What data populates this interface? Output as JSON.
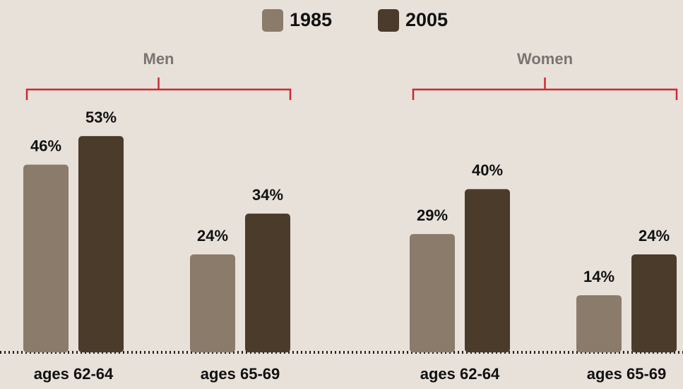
{
  "chart_data": {
    "type": "bar",
    "groups": [
      {
        "label": "Men",
        "categories": [
          "ages 62-64",
          "ages 65-69"
        ]
      },
      {
        "label": "Women",
        "categories": [
          "ages 62-64",
          "ages 65-69"
        ]
      }
    ],
    "series": [
      {
        "name": "1985",
        "color": "#8a7b6b",
        "values": [
          46,
          24,
          29,
          14
        ],
        "value_labels": [
          "46%",
          "24%",
          "29%",
          "14%"
        ]
      },
      {
        "name": "2005",
        "color": "#4a3b2b",
        "values": [
          53,
          34,
          40,
          24
        ],
        "value_labels": [
          "53%",
          "34%",
          "40%",
          "24%"
        ]
      }
    ],
    "bracket_color": "#d0282e"
  }
}
